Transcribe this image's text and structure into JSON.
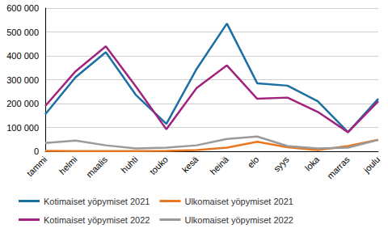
{
  "chart_data": {
    "type": "line",
    "categories": [
      "tammi",
      "helmi",
      "maalis",
      "huhti",
      "touko",
      "kesä",
      "heinä",
      "elo",
      "syys",
      "loka",
      "marras",
      "joulu"
    ],
    "series": [
      {
        "name": "Kotimaiset yöpymiset 2021",
        "color": "#1a6fa3",
        "values": [
          155000,
          310000,
          415000,
          235000,
          115000,
          345000,
          535000,
          285000,
          275000,
          210000,
          80000,
          220000
        ]
      },
      {
        "name": "Ulkomaiset yöpymiset 2021",
        "color": "#e87722",
        "values": [
          2000,
          1000,
          1000,
          1000,
          2000,
          5000,
          15000,
          40000,
          17000,
          5000,
          22000,
          48000
        ]
      },
      {
        "name": "Kotimaiset yöpymiset 2022",
        "color": "#a1237f",
        "values": [
          190000,
          335000,
          440000,
          270000,
          92000,
          265000,
          360000,
          220000,
          225000,
          165000,
          80000,
          210000
        ]
      },
      {
        "name": "Ulkomaiset yöpymiset 2022",
        "color": "#9a9a9a",
        "values": [
          35000,
          45000,
          25000,
          12000,
          15000,
          25000,
          52000,
          62000,
          22000,
          12000,
          15000,
          48000
        ]
      }
    ],
    "ylim": [
      0,
      600000
    ],
    "yticks": [
      0,
      {
        "value": 100000,
        "label": "100 000"
      },
      {
        "value": 200000,
        "label": "200 000"
      },
      {
        "value": 300000,
        "label": "300 000"
      },
      {
        "value": 400000,
        "label": "400 000"
      },
      {
        "value": 500000,
        "label": "500 000"
      },
      {
        "value": 600000,
        "label": "600 000"
      }
    ],
    "grid": true,
    "legend": "bottom"
  }
}
